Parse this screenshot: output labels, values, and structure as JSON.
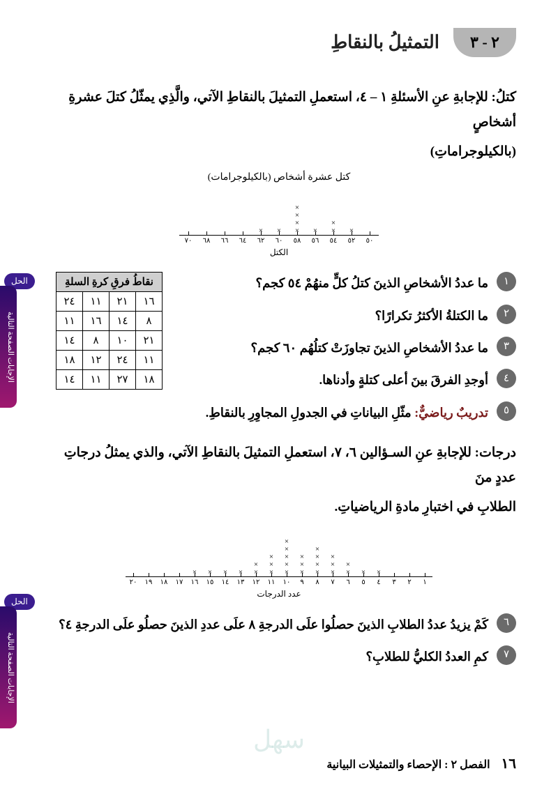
{
  "section": {
    "number": "٢ - ٣",
    "title": "التمثيلُ بالنقاطِ"
  },
  "intro1_a": "كتلُ: للإجابةِ عنِ الأسئلةِ ١ – ٤، استعملِ التمثيلَ بالنقاطِ الآتي، والَّذِي يمثّلُ كتلَ عشرةِ أشخاصٍ",
  "intro1_b": "(بالكيلوجراماتِ)",
  "chart1": {
    "title": "كتل عشرة أشخاص (بالكيلوجرامات)",
    "axis_label": "الكتل",
    "ticks": [
      "٥٠",
      "٥٢",
      "٥٤",
      "٥٦",
      "٥٨",
      "٦٠",
      "٦٢",
      "٦٤",
      "٦٦",
      "٦٨",
      "٧٠"
    ],
    "counts": [
      0,
      1,
      2,
      1,
      4,
      1,
      1,
      0,
      0,
      0,
      0
    ]
  },
  "questions1": [
    {
      "num": "١",
      "text": "ما عددُ الأشخاصِ الذينَ كتلُ كلٍّ منهُمْ ٥٤ كجم؟"
    },
    {
      "num": "٢",
      "text": "ما الكتلةُ الأكثرُ تكرارًا؟"
    },
    {
      "num": "٣",
      "text": "ما عددُ الأشخاصِ الذينَ تجاوزَتْ كتلُهُم ٦٠ كجم؟"
    },
    {
      "num": "٤",
      "text": "أوجدِ الفرقَ بينَ أعلى كتلةٍ وأدناها."
    },
    {
      "num": "٥",
      "prefix": "تدريبٌ رياضيٌّ:",
      "text": " مثّلِ البياناتِ في الجدولِ المجاوِرِ بالنقاطِ."
    }
  ],
  "table": {
    "header": "نقاطُ فرقِ كرةِ السلةِ",
    "rows": [
      [
        "١٦",
        "٢١",
        "١١",
        "٢٤"
      ],
      [
        "٨",
        "١٤",
        "١٦",
        "١١"
      ],
      [
        "٢١",
        "١٠",
        "٨",
        "١٤"
      ],
      [
        "١١",
        "٢٤",
        "١٢",
        "١٨"
      ],
      [
        "١٨",
        "٢٧",
        "١١",
        "١٤"
      ]
    ]
  },
  "intro2_a": "درجات: للإجابةِ عنِ السـؤالين ٦، ٧، استعملِ التمثيلَ بالنقاطِ الآتي، والذي يمثلُ درجاتِ عددٍ منَ",
  "intro2_b": "الطلابِ في اختبارِ مادةِ الرياضياتِ.",
  "chart2": {
    "axis_label": "عدد الدرجات",
    "ticks": [
      "١",
      "٢",
      "٣",
      "٤",
      "٥",
      "٦",
      "٧",
      "٨",
      "٩",
      "١٠",
      "١١",
      "١٢",
      "١٣",
      "١٤",
      "١٥",
      "١٦",
      "١٧",
      "١٨",
      "١٩",
      "٢٠"
    ],
    "counts": [
      0,
      0,
      0,
      1,
      1,
      2,
      3,
      4,
      3,
      5,
      3,
      2,
      1,
      1,
      1,
      1,
      0,
      0,
      0,
      0
    ]
  },
  "questions2": [
    {
      "num": "٦",
      "text": "كَمْ يزيدُ عددُ الطلابِ الذينَ حصلُوا علَى الدرجةِ ٨ علَى عددِ الذينَ حصلُو علَى الدرجةِ ٤؟"
    },
    {
      "num": "٧",
      "text": "كمِ العددُ الكليُّ للطلابِ؟"
    }
  ],
  "sidebar": {
    "tab": "الإجابات الصفحة التالية",
    "pill": "الحل"
  },
  "footer": {
    "page": "١٦",
    "chapter": "الفصل ٢ :  الإحصاء والتمثيلات البيانية"
  },
  "watermark": "سهل"
}
